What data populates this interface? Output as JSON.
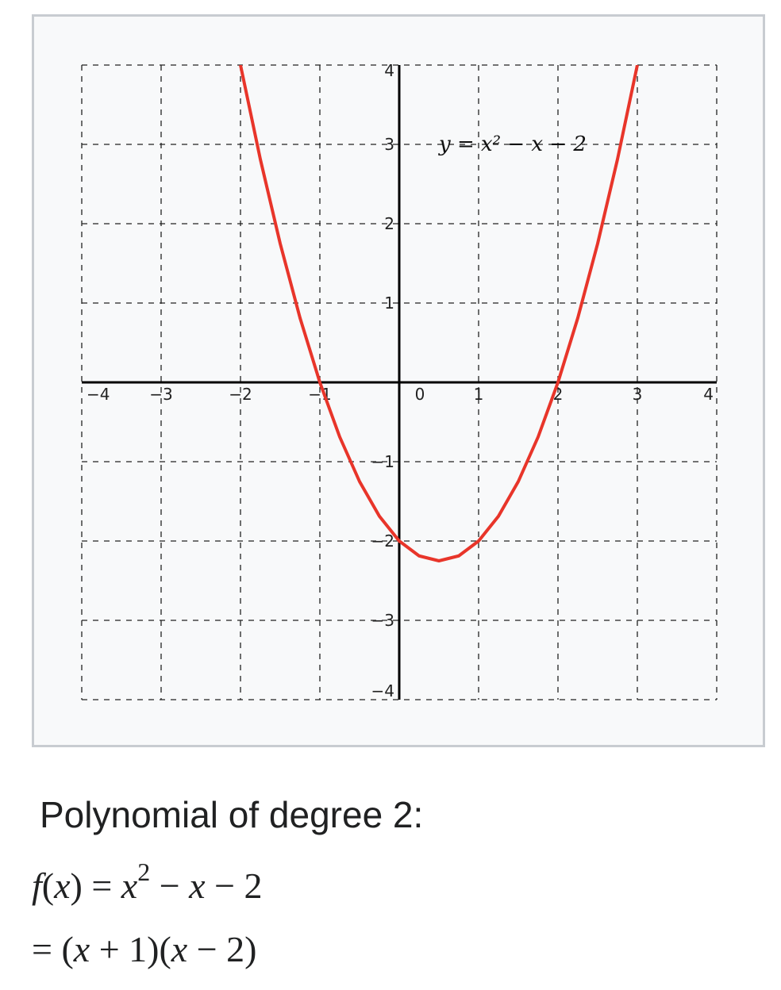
{
  "chart_data": {
    "type": "line",
    "title": "",
    "xlabel": "",
    "ylabel": "",
    "xlim": [
      -4,
      4
    ],
    "ylim": [
      -4,
      4
    ],
    "x_ticks": [
      -4,
      -3,
      -2,
      -1,
      0,
      1,
      2,
      3,
      4
    ],
    "x_tick_labels": [
      "−4",
      "−3",
      "−2",
      "−1",
      "0",
      "1",
      "2",
      "3",
      "4"
    ],
    "y_ticks": [
      -4,
      -3,
      -2,
      -1,
      1,
      2,
      3,
      4
    ],
    "y_tick_labels": [
      "−4",
      "−3",
      "−2",
      "−1",
      "1",
      "2",
      "3",
      "4"
    ],
    "grid": true,
    "grid_style": "dashed",
    "series": [
      {
        "color": "#e8352a",
        "x": [
          -2.0,
          -1.75,
          -1.5,
          -1.25,
          -1.0,
          -0.75,
          -0.5,
          -0.25,
          0.0,
          0.25,
          0.5,
          0.75,
          1.0,
          1.25,
          1.5,
          1.75,
          2.0,
          2.25,
          2.5,
          2.75,
          3.0
        ],
        "y": [
          4.0,
          2.8125,
          1.75,
          0.8125,
          0.0,
          -0.6875,
          -1.25,
          -1.6875,
          -2.0,
          -2.1875,
          -2.25,
          -2.1875,
          -2.0,
          -1.6875,
          -1.25,
          -0.6875,
          0.0,
          0.8125,
          1.75,
          2.8125,
          4.0
        ]
      }
    ],
    "annotations": [
      {
        "x": 0.5,
        "y": 3.0,
        "text": "y = x² − x − 2"
      }
    ]
  },
  "caption": {
    "title": "Polynomial of degree 2:",
    "formula_line1": {
      "f": "f",
      "paren_open": "(",
      "x1": "x",
      "paren_close": ") = ",
      "x2": "x",
      "exp": "2",
      "minus1": " − ",
      "x3": "x",
      "minus2": " − 2"
    },
    "formula_line2": {
      "eq": "= (",
      "x1": "x",
      "mid": " + 1)(",
      "x2": "x",
      "end": " − 2)"
    }
  }
}
